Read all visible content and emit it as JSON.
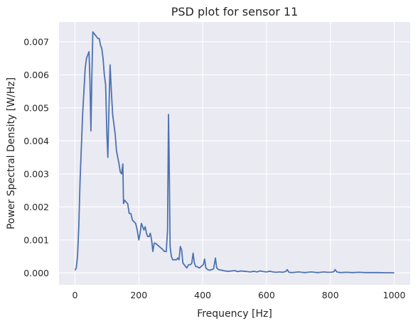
{
  "chart_data": {
    "type": "line",
    "title": "PSD plot for sensor 11",
    "xlabel": "Frequency [Hz]",
    "ylabel": "Power Spectral Density [W/Hz]",
    "xlim": [
      -50,
      1050
    ],
    "ylim": [
      -0.00036,
      0.0076
    ],
    "x_ticks": [
      0,
      200,
      400,
      600,
      800,
      1000
    ],
    "x_tick_labels": [
      "0",
      "200",
      "400",
      "600",
      "800",
      "1000"
    ],
    "y_ticks": [
      0.0,
      0.001,
      0.002,
      0.003,
      0.004,
      0.005,
      0.006,
      0.007
    ],
    "y_tick_labels": [
      "0.000",
      "0.001",
      "0.002",
      "0.003",
      "0.004",
      "0.005",
      "0.006",
      "0.007"
    ],
    "grid": true,
    "colors": {
      "background": "#eaeaf2",
      "grid": "#ffffff",
      "line": "#4c72b0",
      "text": "#262626"
    },
    "series": [
      {
        "values": [
          [
            0,
            8e-05
          ],
          [
            4,
            0.00015
          ],
          [
            8,
            0.0005
          ],
          [
            12,
            0.0014
          ],
          [
            16,
            0.0028
          ],
          [
            20,
            0.0038
          ],
          [
            24,
            0.0048
          ],
          [
            28,
            0.0055
          ],
          [
            32,
            0.0062
          ],
          [
            36,
            0.0065
          ],
          [
            40,
            0.0066
          ],
          [
            44,
            0.0067
          ],
          [
            47,
            0.0058
          ],
          [
            50,
            0.0043
          ],
          [
            53,
            0.006
          ],
          [
            56,
            0.0073
          ],
          [
            60,
            0.00725
          ],
          [
            64,
            0.0072
          ],
          [
            68,
            0.00715
          ],
          [
            72,
            0.0071
          ],
          [
            76,
            0.0071
          ],
          [
            80,
            0.0069
          ],
          [
            84,
            0.0068
          ],
          [
            88,
            0.0065
          ],
          [
            92,
            0.006
          ],
          [
            96,
            0.0057
          ],
          [
            100,
            0.0042
          ],
          [
            103,
            0.0035
          ],
          [
            106,
            0.0048
          ],
          [
            110,
            0.0063
          ],
          [
            114,
            0.0055
          ],
          [
            118,
            0.0048
          ],
          [
            122,
            0.0045
          ],
          [
            126,
            0.0042
          ],
          [
            130,
            0.0037
          ],
          [
            134,
            0.0035
          ],
          [
            138,
            0.0033
          ],
          [
            142,
            0.00305
          ],
          [
            146,
            0.003
          ],
          [
            150,
            0.0033
          ],
          [
            152,
            0.0021
          ],
          [
            156,
            0.0022
          ],
          [
            160,
            0.00215
          ],
          [
            165,
            0.0021
          ],
          [
            170,
            0.0018
          ],
          [
            175,
            0.0018
          ],
          [
            180,
            0.0016
          ],
          [
            185,
            0.00155
          ],
          [
            190,
            0.0015
          ],
          [
            195,
            0.0013
          ],
          [
            200,
            0.001
          ],
          [
            204,
            0.0012
          ],
          [
            208,
            0.0015
          ],
          [
            212,
            0.0014
          ],
          [
            216,
            0.0013
          ],
          [
            220,
            0.0014
          ],
          [
            224,
            0.0012
          ],
          [
            228,
            0.0011
          ],
          [
            232,
            0.0011
          ],
          [
            236,
            0.0012
          ],
          [
            240,
            0.001
          ],
          [
            244,
            0.00065
          ],
          [
            248,
            0.0009
          ],
          [
            252,
            0.0009
          ],
          [
            258,
            0.00085
          ],
          [
            264,
            0.0008
          ],
          [
            270,
            0.00075
          ],
          [
            276,
            0.0007
          ],
          [
            280,
            0.00065
          ],
          [
            286,
            0.00065
          ],
          [
            290,
            0.0013
          ],
          [
            293,
            0.0048
          ],
          [
            295,
            0.0035
          ],
          [
            298,
            0.0008
          ],
          [
            302,
            0.0005
          ],
          [
            306,
            0.0004
          ],
          [
            312,
            0.0004
          ],
          [
            318,
            0.0004
          ],
          [
            322,
            0.00045
          ],
          [
            326,
            0.0004
          ],
          [
            330,
            0.0008
          ],
          [
            334,
            0.0007
          ],
          [
            338,
            0.0003
          ],
          [
            342,
            0.00025
          ],
          [
            346,
            0.0002
          ],
          [
            350,
            0.00015
          ],
          [
            356,
            0.00025
          ],
          [
            362,
            0.00025
          ],
          [
            366,
            0.0003
          ],
          [
            370,
            0.0006
          ],
          [
            374,
            0.0003
          ],
          [
            378,
            0.0002
          ],
          [
            384,
            0.00018
          ],
          [
            390,
            0.00015
          ],
          [
            396,
            0.0002
          ],
          [
            402,
            0.00025
          ],
          [
            406,
            0.00042
          ],
          [
            410,
            0.00015
          ],
          [
            416,
            0.0001
          ],
          [
            422,
            8e-05
          ],
          [
            428,
            0.0001
          ],
          [
            434,
            0.00012
          ],
          [
            440,
            0.00045
          ],
          [
            444,
            0.00015
          ],
          [
            450,
            0.0001
          ],
          [
            460,
            8e-05
          ],
          [
            470,
            6e-05
          ],
          [
            480,
            5e-05
          ],
          [
            490,
            6e-05
          ],
          [
            500,
            7e-05
          ],
          [
            510,
            4e-05
          ],
          [
            520,
            6e-05
          ],
          [
            530,
            5e-05
          ],
          [
            540,
            4e-05
          ],
          [
            550,
            3e-05
          ],
          [
            560,
            5e-05
          ],
          [
            570,
            3e-05
          ],
          [
            580,
            6e-05
          ],
          [
            590,
            4e-05
          ],
          [
            600,
            3e-05
          ],
          [
            610,
            5e-05
          ],
          [
            620,
            3e-05
          ],
          [
            630,
            2e-05
          ],
          [
            640,
            3e-05
          ],
          [
            650,
            2e-05
          ],
          [
            660,
            4e-05
          ],
          [
            665,
            0.0001
          ],
          [
            670,
            2e-05
          ],
          [
            680,
            1e-05
          ],
          [
            690,
            2e-05
          ],
          [
            700,
            3e-05
          ],
          [
            710,
            2e-05
          ],
          [
            720,
            1e-05
          ],
          [
            730,
            2e-05
          ],
          [
            740,
            3e-05
          ],
          [
            750,
            2e-05
          ],
          [
            760,
            1e-05
          ],
          [
            770,
            2e-05
          ],
          [
            780,
            3e-05
          ],
          [
            790,
            2e-05
          ],
          [
            800,
            2e-05
          ],
          [
            810,
            3e-05
          ],
          [
            815,
            0.0001
          ],
          [
            820,
            3e-05
          ],
          [
            830,
            1e-05
          ],
          [
            850,
            2e-05
          ],
          [
            870,
            1e-05
          ],
          [
            890,
            2e-05
          ],
          [
            910,
            1e-05
          ],
          [
            930,
            1e-05
          ],
          [
            950,
            1e-05
          ],
          [
            970,
            5e-06
          ],
          [
            990,
            5e-06
          ],
          [
            1000,
            0.0
          ]
        ]
      }
    ]
  }
}
